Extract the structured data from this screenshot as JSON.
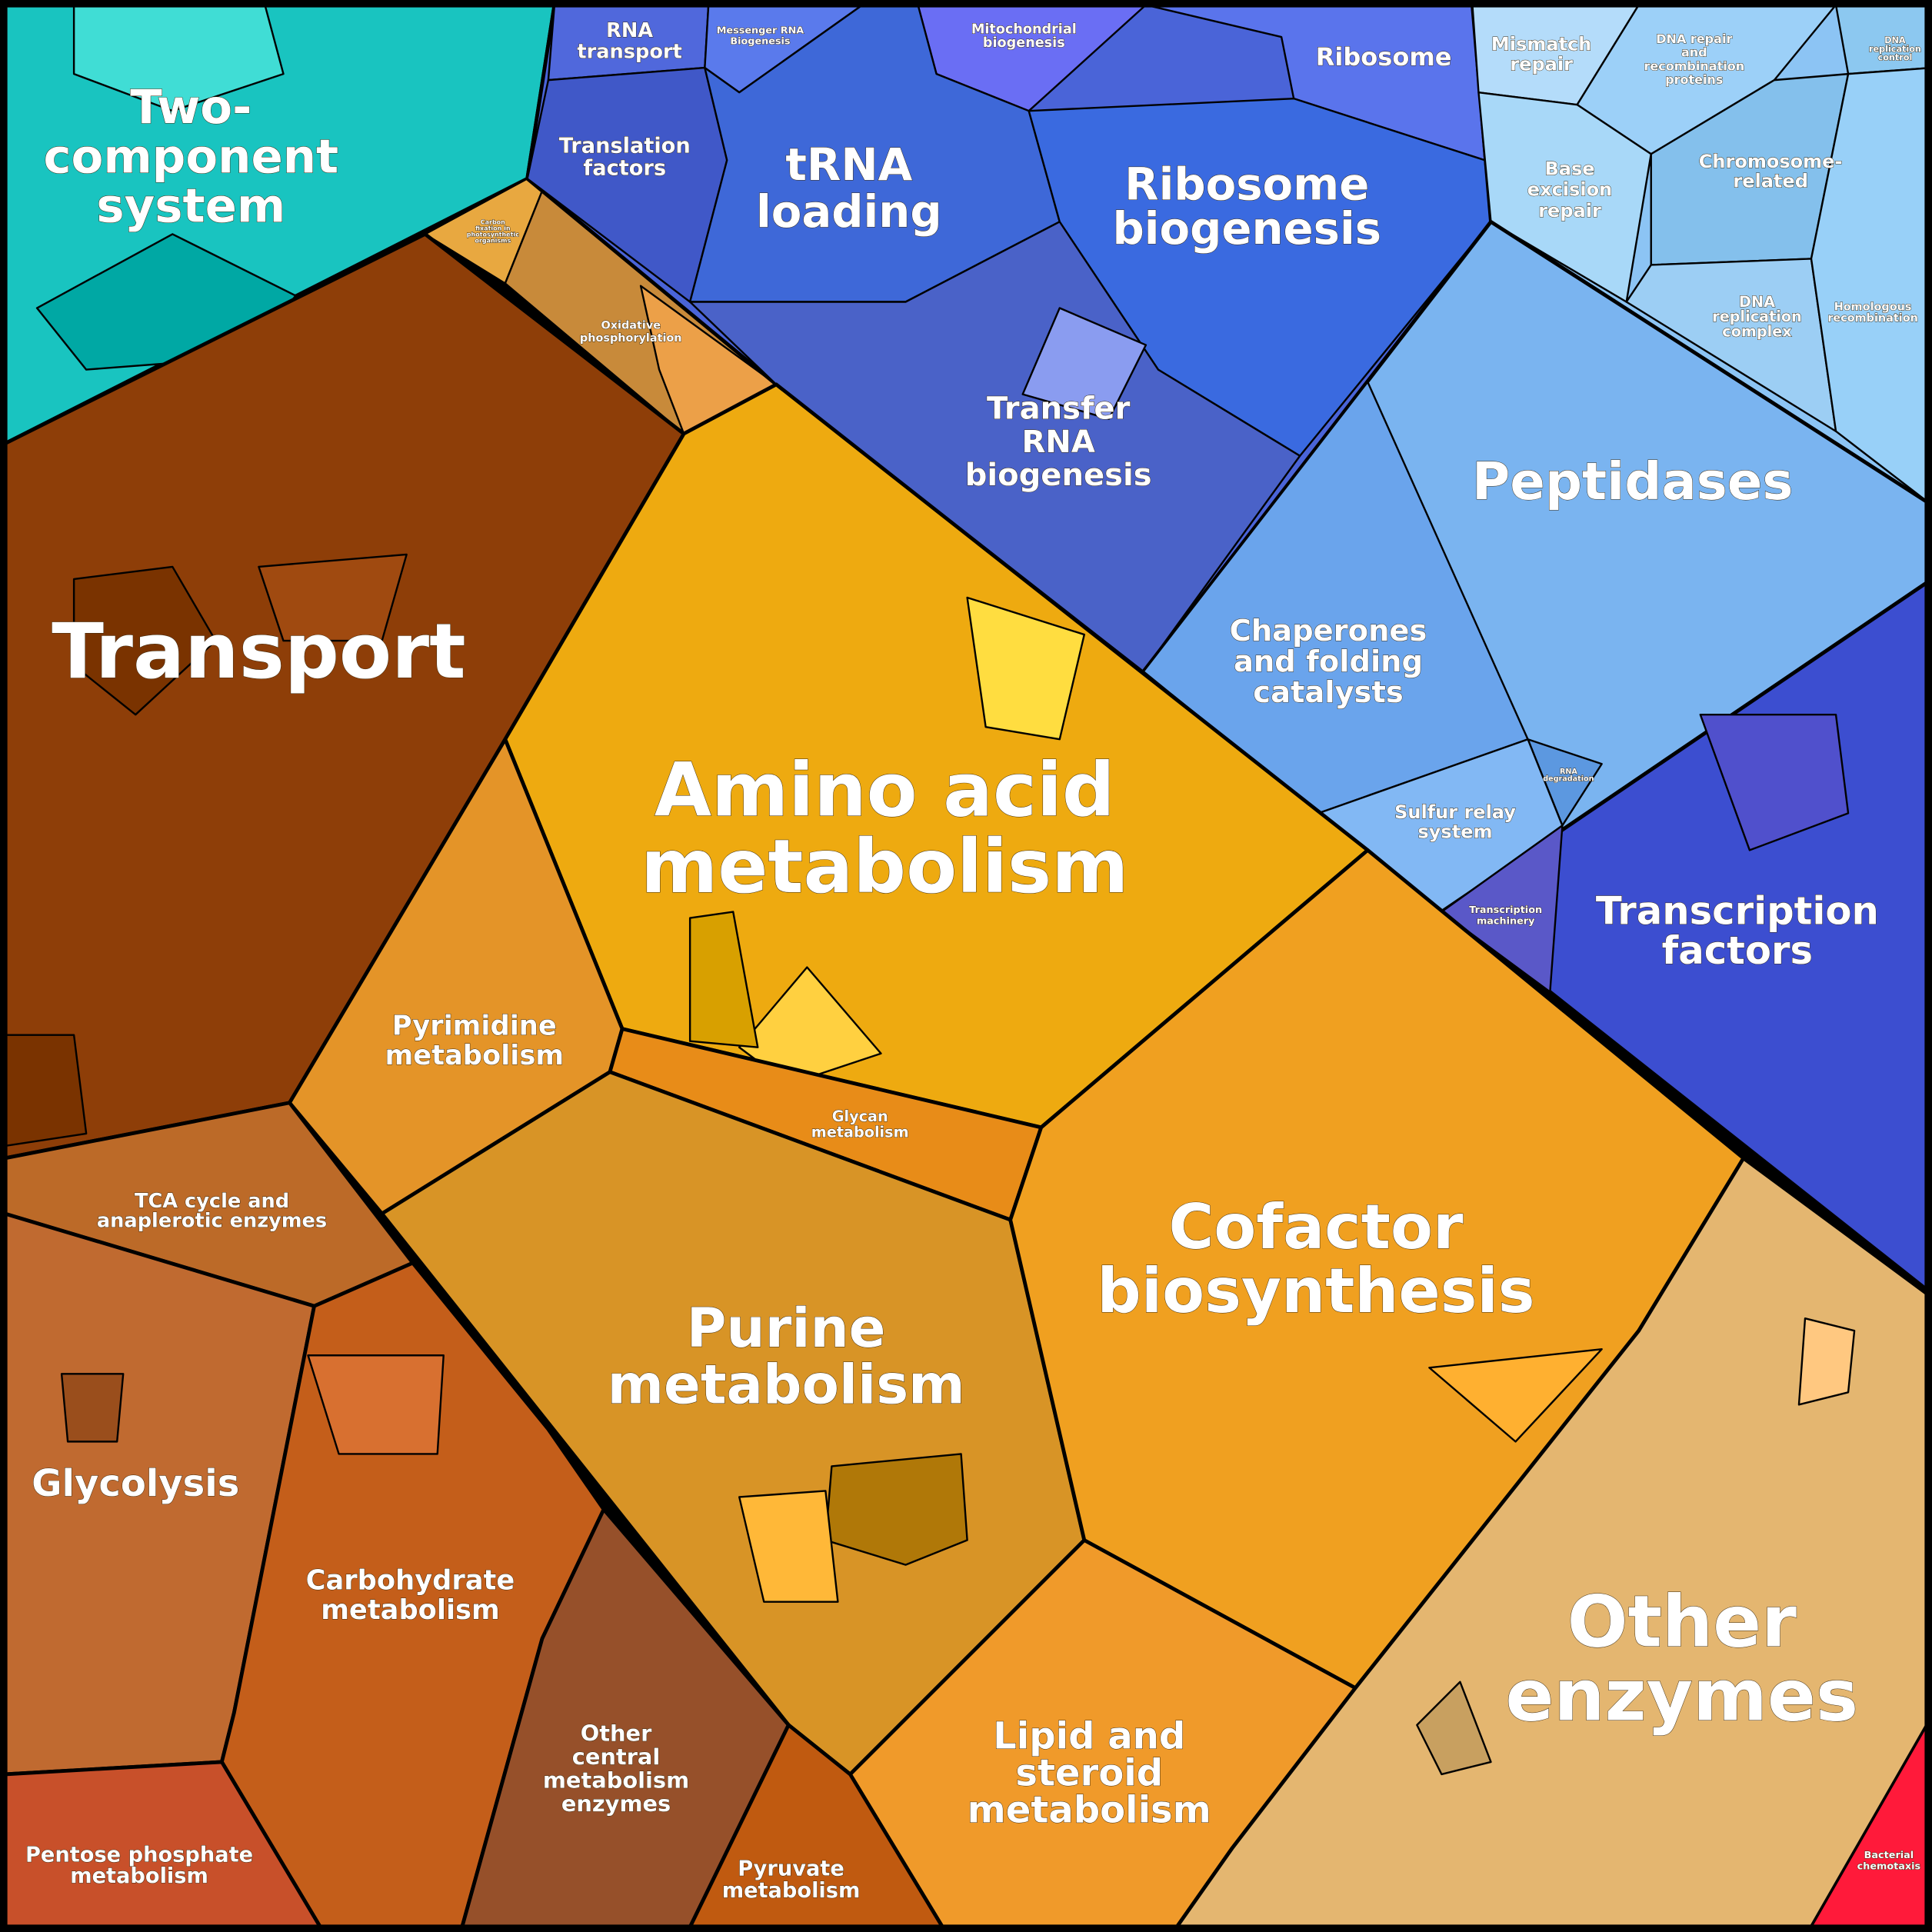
{
  "regions": [
    {
      "name": "two-component",
      "label": [
        "Two-",
        "component",
        "system"
      ]
    },
    {
      "name": "carbon-fixation",
      "label": [
        "Carbon",
        "fixation in",
        "photosynthetic",
        "organisms"
      ]
    },
    {
      "name": "oxidative-phosphorylation",
      "label": [
        "Oxidative",
        "phosphorylation"
      ]
    },
    {
      "name": "transport",
      "label": [
        "Transport"
      ]
    },
    {
      "name": "rna-transport",
      "label": [
        "RNA",
        "transport"
      ]
    },
    {
      "name": "messenger-rna",
      "label": [
        "Messenger RNA",
        "Biogenesis"
      ]
    },
    {
      "name": "mitochondrial",
      "label": [
        "Mitochondrial",
        "biogenesis"
      ]
    },
    {
      "name": "ribosome",
      "label": [
        "Ribosome"
      ]
    },
    {
      "name": "translation-factors",
      "label": [
        "Translation",
        "factors"
      ]
    },
    {
      "name": "trna-loading",
      "label": [
        "tRNA",
        "loading"
      ]
    },
    {
      "name": "ribosome-biogenesis",
      "label": [
        "Ribosome",
        "biogenesis"
      ]
    },
    {
      "name": "transfer-rna",
      "label": [
        "Transfer",
        "RNA",
        "biogenesis"
      ]
    },
    {
      "name": "mismatch-repair",
      "label": [
        "Mismatch",
        "repair"
      ]
    },
    {
      "name": "dna-repair",
      "label": [
        "DNA repair",
        "and",
        "recombination",
        "proteins"
      ]
    },
    {
      "name": "dna-replication-control",
      "label": [
        "DNA",
        "replication",
        "control"
      ]
    },
    {
      "name": "base-excision",
      "label": [
        "Base",
        "excision",
        "repair"
      ]
    },
    {
      "name": "chromosome",
      "label": [
        "Chromosome-",
        "related"
      ]
    },
    {
      "name": "dna-replication-complex",
      "label": [
        "DNA",
        "replication",
        "complex"
      ]
    },
    {
      "name": "homologous",
      "label": [
        "Homologous",
        "recombination"
      ]
    },
    {
      "name": "peptidases",
      "label": [
        "Peptidases"
      ]
    },
    {
      "name": "chaperones",
      "label": [
        "Chaperones",
        "and folding",
        "catalysts"
      ]
    },
    {
      "name": "rna-degradation",
      "label": [
        "RNA",
        "degradation"
      ]
    },
    {
      "name": "sulfur-relay",
      "label": [
        "Sulfur relay",
        "system"
      ]
    },
    {
      "name": "transcription-machinery",
      "label": [
        "Transcription",
        "machinery"
      ]
    },
    {
      "name": "transcription-factors",
      "label": [
        "Transcription",
        "factors"
      ]
    },
    {
      "name": "amino-acid",
      "label": [
        "Amino acid",
        "metabolism"
      ]
    },
    {
      "name": "pyrimidine",
      "label": [
        "Pyrimidine",
        "metabolism"
      ]
    },
    {
      "name": "glycan",
      "label": [
        "Glycan",
        "metabolism"
      ]
    },
    {
      "name": "purine",
      "label": [
        "Purine",
        "metabolism"
      ]
    },
    {
      "name": "cofactor",
      "label": [
        "Cofactor",
        "biosynthesis"
      ]
    },
    {
      "name": "lipid",
      "label": [
        "Lipid and",
        "steroid",
        "metabolism"
      ]
    },
    {
      "name": "other-enzymes",
      "label": [
        "Other",
        "enzymes"
      ]
    },
    {
      "name": "bacterial-chemotaxis",
      "label": [
        "Bacterial",
        "chemotaxis"
      ]
    },
    {
      "name": "tca",
      "label": [
        "TCA cycle and",
        "anaplerotic enzymes"
      ]
    },
    {
      "name": "glycolysis",
      "label": [
        "Glycolysis"
      ]
    },
    {
      "name": "carbohydrate",
      "label": [
        "Carbohydrate",
        "metabolism"
      ]
    },
    {
      "name": "other-central",
      "label": [
        "Other",
        "central",
        "metabolism",
        "enzymes"
      ]
    },
    {
      "name": "pyruvate",
      "label": [
        "Pyruvate",
        "metabolism"
      ]
    },
    {
      "name": "pentose",
      "label": [
        "Pentose phosphate",
        "metabolism"
      ]
    }
  ]
}
